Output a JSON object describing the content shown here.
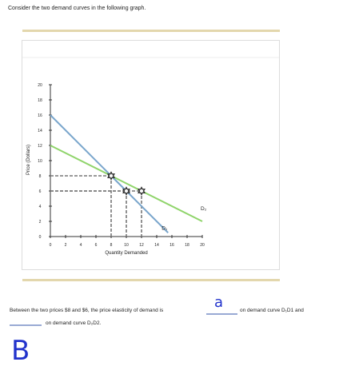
{
  "question": "Consider the two demand curves in the following graph.",
  "chart_data": {
    "type": "line",
    "xlabel": "Quantity Demanded",
    "ylabel": "Price (Dollars)",
    "xlim": [
      0,
      20
    ],
    "ylim": [
      0,
      20
    ],
    "xticks": [
      0,
      2,
      4,
      6,
      8,
      10,
      12,
      14,
      16,
      18,
      20
    ],
    "yticks": [
      0,
      2,
      4,
      6,
      8,
      10,
      12,
      14,
      16,
      18,
      20
    ],
    "series": [
      {
        "name": "D₁",
        "color": "#7aa6cc",
        "x": [
          0,
          8,
          10,
          15.5
        ],
        "values": [
          16,
          8,
          6,
          0.5
        ]
      },
      {
        "name": "D₂",
        "color": "#8fd46a",
        "x": [
          0,
          8,
          12,
          20
        ],
        "values": [
          12,
          8,
          6,
          2
        ]
      }
    ],
    "points": {
      "x": [
        8,
        10,
        12
      ],
      "values": [
        8,
        6,
        6
      ]
    }
  },
  "answer_line": {
    "text1": "Between the two prices $8 and $6, the price elasticity of demand is",
    "text2": "on demand curve D₁D1 and",
    "text3": "on demand curve D₂D2.",
    "handwritten1": "a",
    "handwritten2": "B"
  }
}
